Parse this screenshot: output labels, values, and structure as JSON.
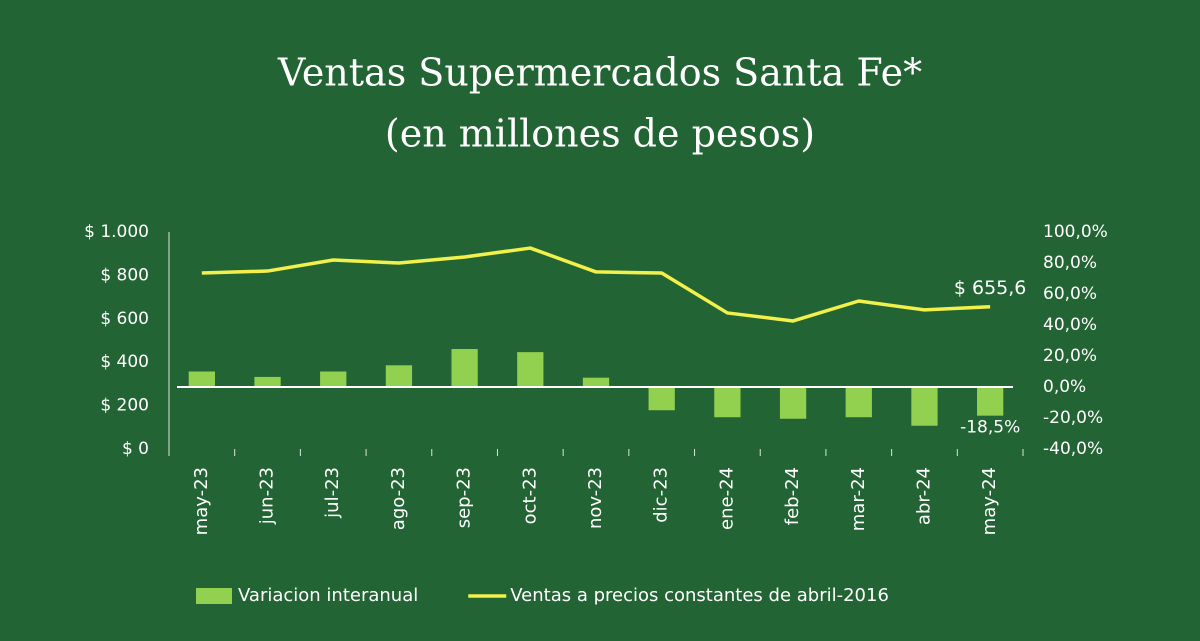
{
  "chart_data": {
    "type": "bar-line",
    "title": "Ventas Supermercados Santa Fe*",
    "subtitle": "(en millones de pesos)",
    "categories": [
      "may-23",
      "jun-23",
      "jul-23",
      "ago-23",
      "sep-23",
      "oct-23",
      "nov-23",
      "dic-23",
      "ene-24",
      "feb-24",
      "mar-24",
      "abr-24",
      "may-24"
    ],
    "series": [
      {
        "name": "Variacion interanual",
        "type": "bar",
        "axis": "y2",
        "color": "#92d050",
        "values": [
          10,
          6.5,
          10,
          14,
          24.5,
          22.5,
          6,
          -15,
          -19.5,
          -20.5,
          -19.5,
          -25,
          -18.5
        ],
        "value_labels": [
          null,
          null,
          null,
          null,
          null,
          null,
          null,
          null,
          null,
          null,
          null,
          null,
          "-18,5%"
        ]
      },
      {
        "name": "Ventas a precios constantes de abril-2016",
        "type": "line",
        "axis": "y",
        "color": "#f2f04a",
        "values": [
          811,
          820,
          871,
          857,
          885,
          926,
          816,
          811,
          627,
          590,
          682,
          641,
          655.6
        ],
        "value_labels": [
          null,
          null,
          null,
          null,
          null,
          null,
          null,
          null,
          null,
          null,
          null,
          null,
          "$ 655,6"
        ]
      }
    ],
    "ylim": [
      0,
      1000
    ],
    "yticks": [
      {
        "value": 0,
        "label": "$ 0"
      },
      {
        "value": 200,
        "label": "$ 200"
      },
      {
        "value": 400,
        "label": "$ 400"
      },
      {
        "value": 600,
        "label": "$ 600"
      },
      {
        "value": 800,
        "label": "$ 800"
      },
      {
        "value": 1000,
        "label": "$ 1.000"
      }
    ],
    "y2lim": [
      -40,
      100
    ],
    "y2ticks": [
      {
        "value": -40,
        "label": "-40,0%"
      },
      {
        "value": -20,
        "label": "-20,0%"
      },
      {
        "value": 0,
        "label": "0,0%"
      },
      {
        "value": 20,
        "label": "20,0%"
      },
      {
        "value": 40,
        "label": "40,0%"
      },
      {
        "value": 60,
        "label": "60,0%"
      },
      {
        "value": 80,
        "label": "80,0%"
      },
      {
        "value": 100,
        "label": "100,0%"
      }
    ],
    "grid": false,
    "legend": "bottom"
  }
}
